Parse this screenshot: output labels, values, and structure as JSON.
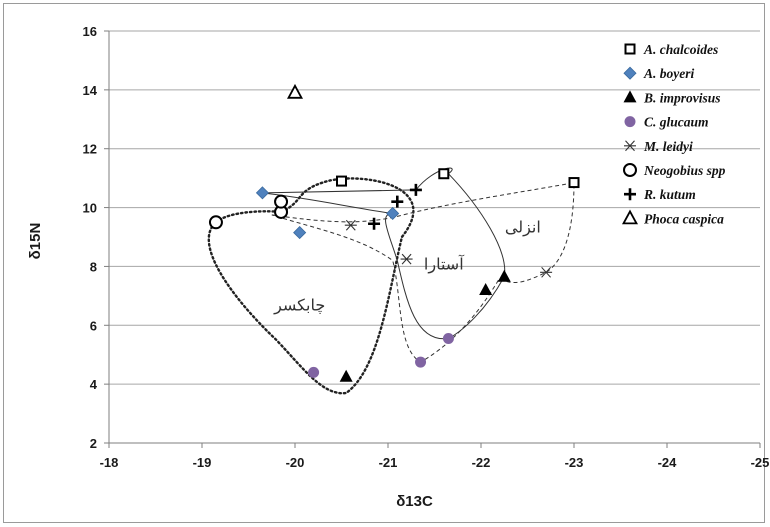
{
  "chart_data": {
    "type": "scatter",
    "xlabel": "δ13C",
    "ylabel": "δ15N",
    "xlim": [
      -18,
      -25
    ],
    "ylim": [
      2,
      16
    ],
    "x_ticks": [
      "-18",
      "-19",
      "-20",
      "-21",
      "-22",
      "-23",
      "-24",
      "-25"
    ],
    "y_ticks": [
      "2",
      "4",
      "6",
      "8",
      "10",
      "12",
      "14",
      "16"
    ],
    "grid": "horizontal",
    "legend_position": "right",
    "series": [
      {
        "name": "A. chalcoides",
        "marker": "open-square",
        "points": [
          [
            -20.5,
            10.9
          ],
          [
            -21.6,
            11.15
          ],
          [
            -23.0,
            10.85
          ]
        ]
      },
      {
        "name": "A. boyeri",
        "marker": "diamond",
        "points": [
          [
            -19.65,
            10.5
          ],
          [
            -20.05,
            9.15
          ],
          [
            -21.05,
            9.8
          ]
        ]
      },
      {
        "name": "B. improvisus",
        "marker": "triangle",
        "points": [
          [
            -20.55,
            4.25
          ],
          [
            -22.05,
            7.2
          ],
          [
            -22.25,
            7.65
          ]
        ]
      },
      {
        "name": "C. glucaum",
        "marker": "circle-purple",
        "points": [
          [
            -20.2,
            4.4
          ],
          [
            -21.35,
            4.75
          ],
          [
            -21.65,
            5.55
          ]
        ]
      },
      {
        "name": "M. leidyi",
        "marker": "asterisk",
        "points": [
          [
            -20.6,
            9.4
          ],
          [
            -21.2,
            8.25
          ],
          [
            -22.7,
            7.8
          ]
        ]
      },
      {
        "name": "Neogobius spp",
        "marker": "open-circle",
        "points": [
          [
            -19.15,
            9.5
          ],
          [
            -19.85,
            9.85
          ],
          [
            -19.85,
            10.2
          ]
        ]
      },
      {
        "name": "R. kutum",
        "marker": "plus",
        "points": [
          [
            -20.85,
            9.45
          ],
          [
            -21.1,
            10.2
          ],
          [
            -21.3,
            10.6
          ]
        ]
      },
      {
        "name": "Phoca caspica",
        "marker": "open-triangle",
        "points": [
          [
            -20.0,
            13.9
          ]
        ]
      }
    ],
    "regions": [
      {
        "label": "چابکسر",
        "style": "dotted"
      },
      {
        "label": "آستارا",
        "style": "solid"
      },
      {
        "label": "انزلی",
        "style": "dashed"
      }
    ],
    "colors": {
      "diamond": "#4f81bd",
      "circle": "#8064a2",
      "grid": "#a6a6a6",
      "black": "#000000"
    }
  }
}
